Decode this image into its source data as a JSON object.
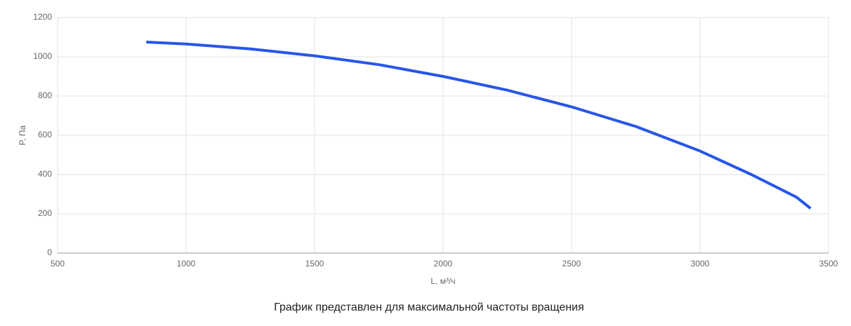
{
  "chart_data": {
    "type": "line",
    "x_label": "L, м³/ч",
    "y_label": "P, Па",
    "caption": "График представлен для максимальной частоты вращения",
    "x": [
      845,
      1000,
      1250,
      1500,
      1750,
      2000,
      2250,
      2500,
      2750,
      3000,
      3200,
      3375,
      3430
    ],
    "series": [
      {
        "color": "#2756e8",
        "values": [
          1075,
          1065,
          1040,
          1005,
          960,
          900,
          830,
          745,
          645,
          520,
          400,
          285,
          228
        ]
      }
    ],
    "xlim": [
      500,
      3500
    ],
    "xticks": [
      500,
      1000,
      1500,
      2000,
      2500,
      3000,
      3500
    ],
    "ylim": [
      0,
      1200
    ],
    "yticks": [
      0,
      200,
      400,
      600,
      800,
      1000,
      1200
    ],
    "grid": true
  }
}
